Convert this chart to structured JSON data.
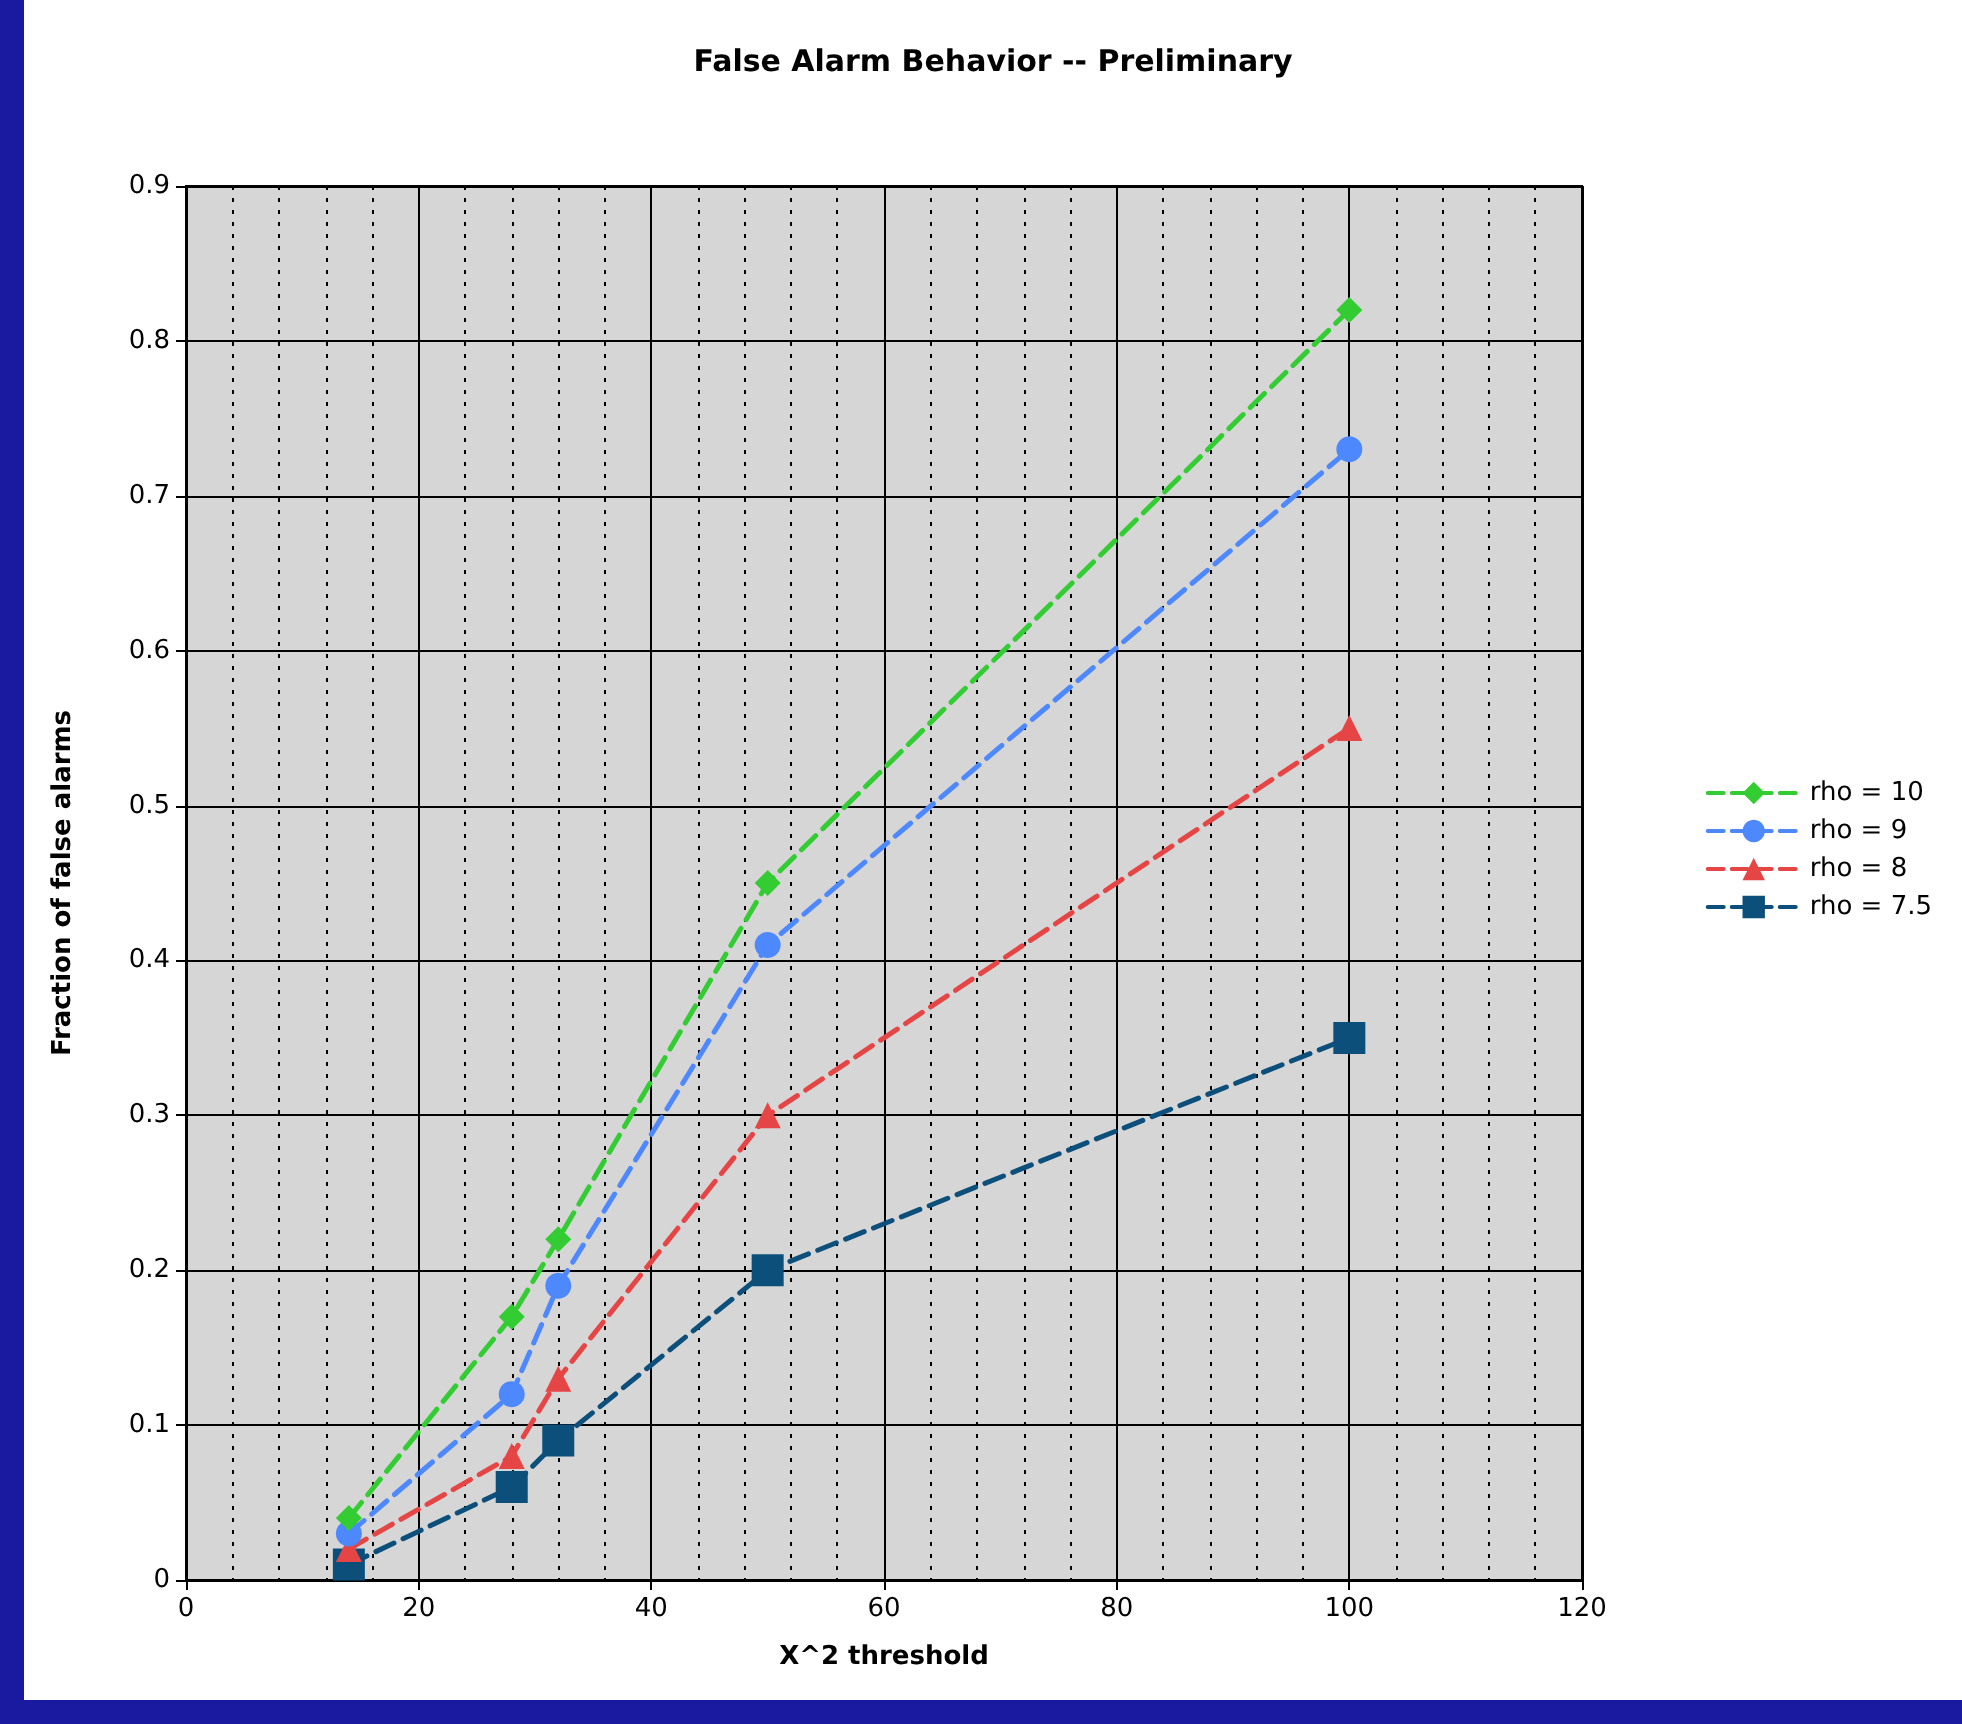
{
  "chart_data": {
    "type": "line",
    "title": "False Alarm Behavior -- Preliminary",
    "xlabel": "X^2 threshold",
    "ylabel": "Fraction of false alarms",
    "x": [
      14,
      28,
      32,
      50,
      100
    ],
    "series": [
      {
        "name": "rho = 10",
        "color": "#33cc33",
        "marker": "diamond",
        "values": [
          0.04,
          0.17,
          0.22,
          0.45,
          0.82
        ]
      },
      {
        "name": "rho = 9",
        "color": "#4d88ff",
        "marker": "circle",
        "values": [
          0.03,
          0.12,
          0.19,
          0.41,
          0.73
        ]
      },
      {
        "name": "rho = 8",
        "color": "#e64545",
        "marker": "triangle",
        "values": [
          0.02,
          0.08,
          0.13,
          0.3,
          0.55
        ]
      },
      {
        "name": "rho = 7.5",
        "color": "#0b4f7a",
        "marker": "square",
        "values": [
          0.01,
          0.06,
          0.09,
          0.2,
          0.35
        ]
      }
    ],
    "xlim": [
      0,
      120
    ],
    "xticks": [
      0,
      20,
      40,
      60,
      80,
      100,
      120
    ],
    "ylim": [
      0,
      0.9
    ],
    "yticks": [
      0,
      0.1,
      0.2,
      0.3,
      0.4,
      0.5,
      0.6,
      0.7,
      0.8,
      0.9
    ],
    "grid": true,
    "legend": "right",
    "line_style": "dashed"
  }
}
